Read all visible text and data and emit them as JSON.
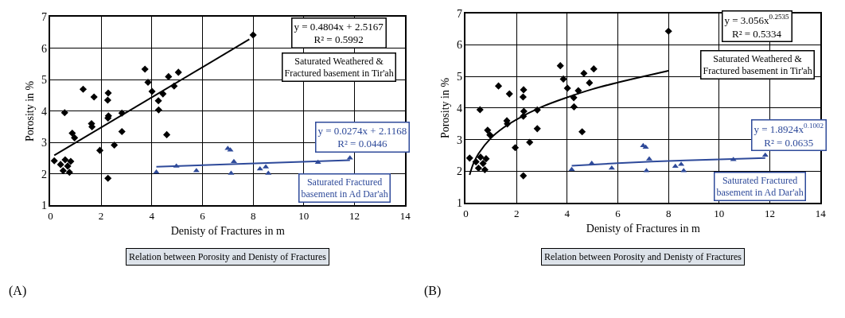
{
  "chart_data": [
    {
      "type": "scatter",
      "xlabel": "Denisty of Fractures in m",
      "ylabel": "Porosity in %",
      "xlim": [
        0,
        14
      ],
      "ylim": [
        1,
        7
      ],
      "xticks": [
        0,
        2,
        4,
        6,
        8,
        10,
        12,
        14
      ],
      "yticks": [
        1,
        2,
        3,
        4,
        5,
        6,
        7
      ],
      "grid": true,
      "annotations": [
        "y = 0.4804x + 2.5167\nR² = 0.5992",
        "Saturated Weathered &\nFractured basement in Tir'ah",
        "y = 0.0274x + 2.1168\nR² = 0.0446",
        "Saturated Fractured\nbasement in Ad Dar'ah",
        "Relation between Porosity and Denisty of Fractures",
        "(A)"
      ],
      "series": [
        {
          "marker": "diamond",
          "color": "#000000",
          "x": [
            0.15,
            0.56,
            0.4,
            0.5,
            0.58,
            0.68,
            0.75,
            0.8,
            0.86,
            0.95,
            1.29,
            1.62,
            1.64,
            1.72,
            1.95,
            2.28,
            2.26,
            2.29,
            2.27,
            2.27,
            2.52,
            2.82,
            2.82,
            3.73,
            3.85,
            4.01,
            4.26,
            4.27,
            4.44,
            4.59,
            4.66,
            4.88,
            5.05,
            8.0
          ],
          "values": [
            2.42,
            3.95,
            2.3,
            2.1,
            2.45,
            2.25,
            2.05,
            2.4,
            3.3,
            3.15,
            4.7,
            3.6,
            3.5,
            4.45,
            2.75,
            4.58,
            4.35,
            3.85,
            3.78,
            1.86,
            2.92,
            3.94,
            3.35,
            5.34,
            4.92,
            4.63,
            4.33,
            4.04,
            4.55,
            3.25,
            5.1,
            4.8,
            5.24,
            6.43
          ]
        },
        {
          "marker": "triangle",
          "color": "#2e4a9a",
          "x": [
            4.18,
            4.97,
            5.76,
            7.0,
            7.1,
            7.24,
            7.13,
            8.27,
            8.5,
            8.6,
            10.56,
            11.82
          ],
          "values": [
            2.06,
            2.25,
            2.1,
            2.81,
            2.76,
            2.39,
            2.02,
            2.16,
            2.22,
            2.02,
            2.37,
            2.51
          ]
        },
        {
          "type": "line",
          "marker": "none",
          "color": "#000000",
          "x": [
            0.15,
            7.85
          ],
          "values": [
            2.59,
            6.29
          ]
        },
        {
          "type": "line",
          "marker": "none",
          "color": "#2e4a9a",
          "x": [
            4.18,
            11.82
          ],
          "values": [
            2.23,
            2.44
          ]
        }
      ]
    },
    {
      "type": "scatter",
      "xlabel": "Denisty of Fractures in m",
      "ylabel": "Porosity in %",
      "xlim": [
        0,
        14
      ],
      "ylim": [
        1,
        7
      ],
      "xticks": [
        0,
        2,
        4,
        6,
        8,
        10,
        12,
        14
      ],
      "yticks": [
        1,
        2,
        3,
        4,
        5,
        6,
        7
      ],
      "grid": true,
      "annotations": [
        "y = 3.056x$^{0.2535}$\nR² = 0.5334",
        "Saturated Weathered &\nFractured basement in Tir'ah",
        "y = 1.8924x$^{0.1002}$\nR² = 0.0635",
        "Saturated Fractured\nbasement in Ad Dar'ah",
        "Relation between Porosity and Denisty of Fractures",
        "(B)"
      ],
      "series": [
        {
          "marker": "diamond",
          "color": "#000000",
          "x": [
            0.15,
            0.56,
            0.4,
            0.5,
            0.58,
            0.68,
            0.75,
            0.8,
            0.86,
            0.95,
            1.29,
            1.62,
            1.64,
            1.72,
            1.95,
            2.28,
            2.26,
            2.29,
            2.27,
            2.27,
            2.52,
            2.82,
            2.82,
            3.73,
            3.85,
            4.01,
            4.26,
            4.27,
            4.44,
            4.59,
            4.66,
            4.88,
            5.05,
            8.0
          ],
          "values": [
            2.42,
            3.95,
            2.3,
            2.1,
            2.45,
            2.25,
            2.05,
            2.4,
            3.3,
            3.15,
            4.7,
            3.6,
            3.5,
            4.45,
            2.75,
            4.58,
            4.35,
            3.9,
            3.74,
            1.86,
            2.92,
            3.94,
            3.35,
            5.34,
            4.92,
            4.63,
            4.33,
            4.04,
            4.55,
            3.25,
            5.1,
            4.8,
            5.24,
            6.43
          ]
        },
        {
          "marker": "triangle",
          "color": "#2e4a9a",
          "x": [
            4.18,
            4.97,
            5.76,
            7.0,
            7.1,
            7.24,
            7.13,
            8.27,
            8.5,
            8.6,
            10.56,
            11.82
          ],
          "values": [
            2.06,
            2.25,
            2.1,
            2.81,
            2.76,
            2.39,
            2.02,
            2.16,
            2.22,
            2.02,
            2.37,
            2.51
          ]
        },
        {
          "type": "line",
          "marker": "none",
          "color": "#000000",
          "x": [
            0.15,
            0.3,
            0.5,
            1,
            1.5,
            2,
            3,
            4,
            5,
            6,
            7,
            8
          ],
          "values": [
            1.89,
            2.25,
            2.56,
            3.06,
            3.39,
            3.64,
            4.04,
            4.34,
            4.6,
            4.81,
            5.0,
            5.18
          ]
        },
        {
          "type": "line",
          "marker": "none",
          "color": "#2e4a9a",
          "x": [
            4.18,
            6,
            8,
            10,
            11.82
          ],
          "values": [
            2.18,
            2.26,
            2.33,
            2.38,
            2.42
          ]
        }
      ]
    }
  ]
}
